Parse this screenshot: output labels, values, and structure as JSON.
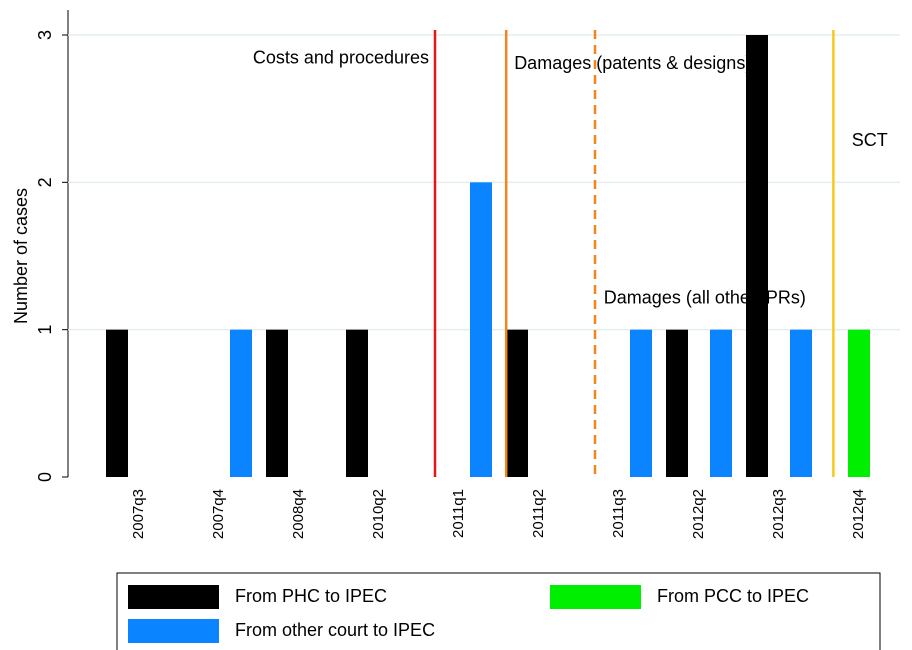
{
  "chart_data": {
    "type": "bar",
    "ylabel": "Number of cases",
    "categories": [
      "2007q3",
      "2007q4",
      "2008q4",
      "2010q2",
      "2011q1",
      "2011q2",
      "2011q3",
      "2012q2",
      "2012q3",
      "2012q4"
    ],
    "series": [
      {
        "name": "From PHC to IPEC",
        "color": "#000000",
        "values": [
          1,
          0,
          1,
          1,
          0,
          1,
          0,
          1,
          3,
          0
        ]
      },
      {
        "name": "From PCC to IPEC",
        "color": "#00ee00",
        "values": [
          0,
          0,
          0,
          0,
          0,
          0,
          0,
          0,
          0,
          1
        ]
      },
      {
        "name": "From other court to IPEC",
        "color": "#0a84ff",
        "values": [
          0,
          1,
          0,
          0,
          2,
          0,
          1,
          1,
          1,
          0
        ]
      }
    ],
    "ylim": [
      0,
      3
    ],
    "yticks": [
      0,
      1,
      2,
      3
    ],
    "grid": true,
    "vlines": [
      {
        "x": 3.7,
        "color": "#e8141b",
        "dashed": false
      },
      {
        "x": 4.59,
        "color": "#f0861e",
        "dashed": false
      },
      {
        "x": 5.7,
        "color": "#f0861e",
        "dashed": true
      },
      {
        "x": 8.68,
        "color": "#f7c81d",
        "dashed": false
      }
    ],
    "annotations": [
      {
        "text": "Costs and procedures",
        "x": 3.625,
        "y": 2.84,
        "anchor": "end"
      },
      {
        "text": "Damages (patents & designs)",
        "x": 4.69,
        "y": 2.8,
        "anchor": "start"
      },
      {
        "text": "Damages (all other IPRs)",
        "x": 5.81,
        "y": 1.21,
        "anchor": "start"
      },
      {
        "text": "SCT",
        "x": 8.91,
        "y": 2.28,
        "anchor": "start"
      }
    ]
  }
}
